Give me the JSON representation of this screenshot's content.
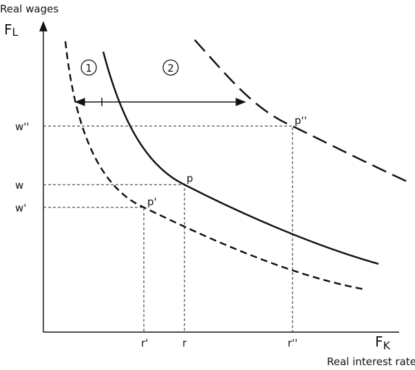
{
  "y_axis": {
    "title": "Real wages",
    "symbol": "F",
    "symbol_sub": "L"
  },
  "x_axis": {
    "title": "Real interest rate",
    "symbol": "F",
    "symbol_sub": "K"
  },
  "y_ticks": [
    "w''",
    "w",
    "w'"
  ],
  "x_ticks": [
    "r'",
    "r",
    "r''"
  ],
  "points": [
    "p''",
    "p",
    "p'"
  ],
  "shifts": [
    "1",
    "2"
  ]
}
